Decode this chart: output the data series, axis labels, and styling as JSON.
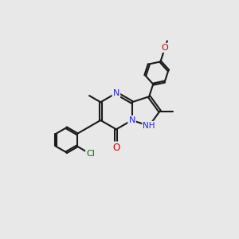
{
  "bg_color": "#e8e8e8",
  "bond_color": "#1a1a1a",
  "n_color": "#2020ee",
  "o_color": "#cc0000",
  "cl_color": "#006600",
  "lw": 1.5,
  "dbo": 0.05,
  "fs": 7.5,
  "figsize": [
    3.0,
    3.0
  ],
  "dpi": 100,
  "xlim": [
    0,
    10
  ],
  "ylim": [
    0,
    10
  ]
}
